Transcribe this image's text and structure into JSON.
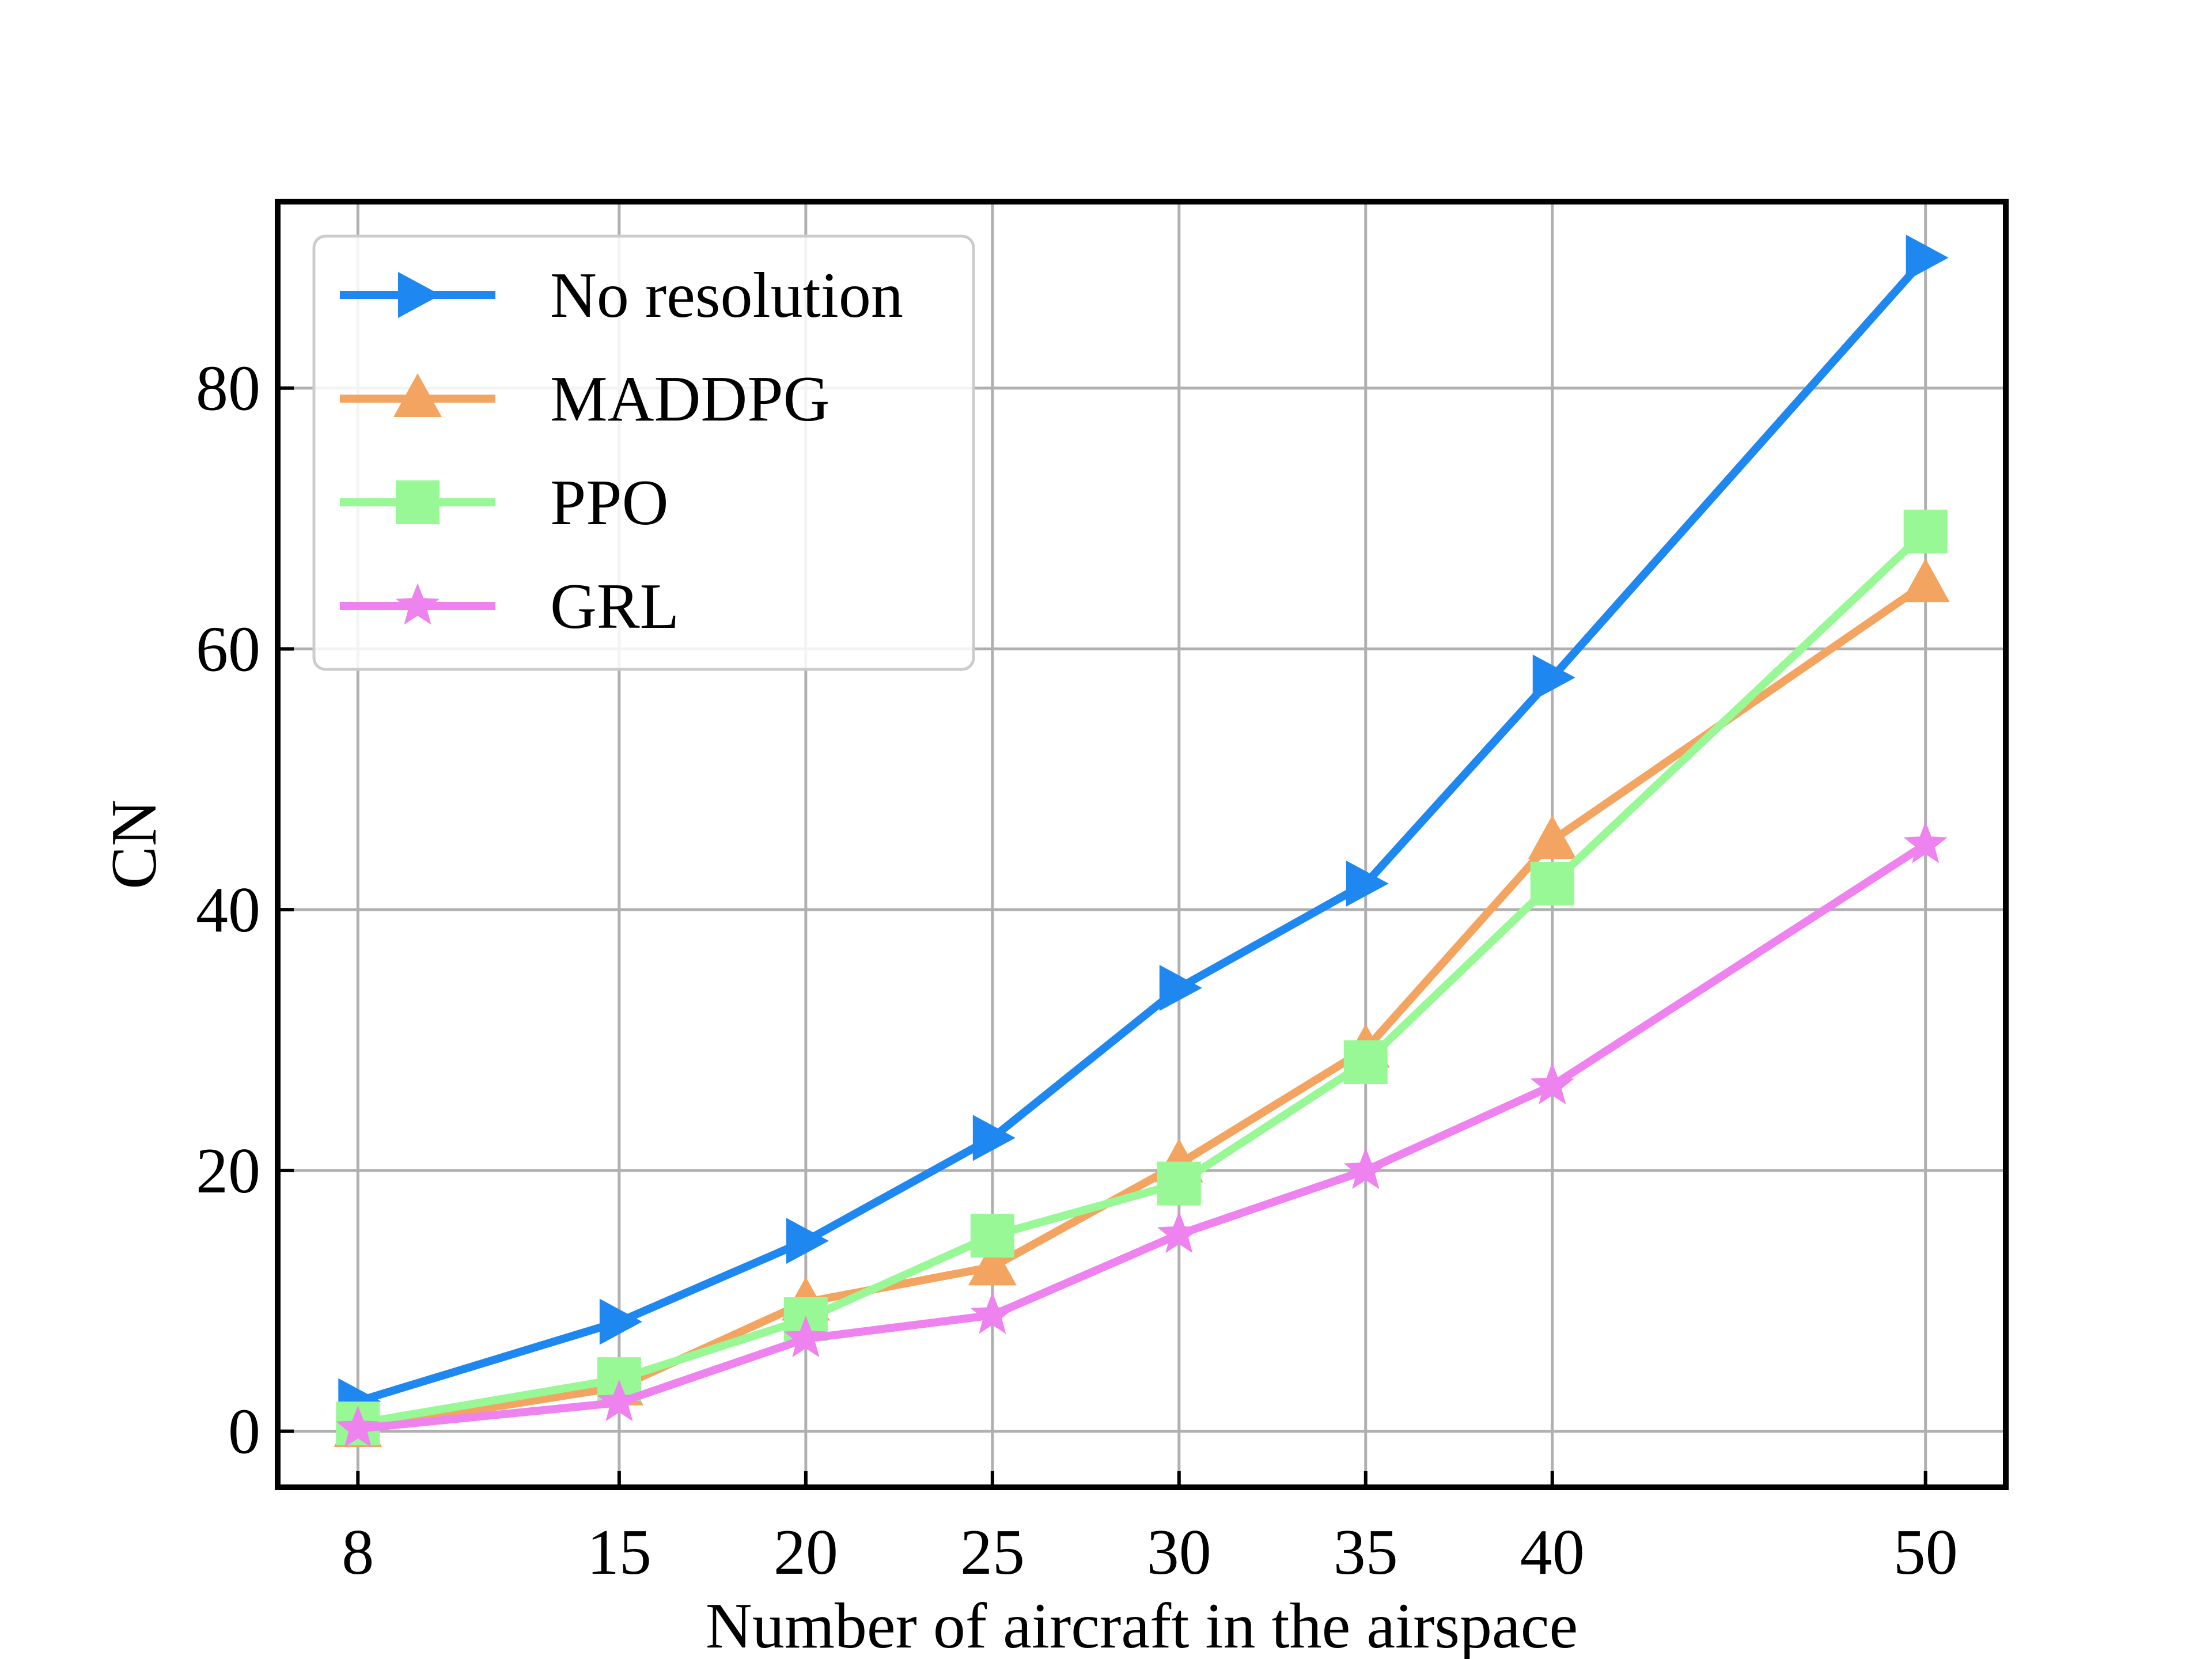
{
  "chart_data": {
    "type": "line",
    "xlabel": "Number of aircraft in the airspace",
    "ylabel": "CN",
    "x": [
      8,
      15,
      20,
      25,
      30,
      35,
      40,
      50
    ],
    "xticks": [
      "8",
      "15",
      "20",
      "25",
      "30",
      "35",
      "40",
      "50"
    ],
    "yticks": [
      "0",
      "20",
      "40",
      "60",
      "80"
    ],
    "xlim": [
      5.85,
      52.15
    ],
    "ylim": [
      -4.3,
      94.3
    ],
    "grid": true,
    "legend_position": "top-left",
    "series": [
      {
        "name": "No resolution",
        "color": "#1e88f0",
        "marker": "triangle-right",
        "values": [
          2.3,
          8.4,
          14.6,
          22.5,
          34.0,
          42.0,
          57.8,
          90.0
        ]
      },
      {
        "name": "MADDPG",
        "color": "#f4a461",
        "marker": "triangle-up",
        "values": [
          0.2,
          3.4,
          9.9,
          12.6,
          20.5,
          29.3,
          45.3,
          65.0
        ]
      },
      {
        "name": "PPO",
        "color": "#98f896",
        "marker": "square",
        "values": [
          0.6,
          4.0,
          8.6,
          15.0,
          19.0,
          28.3,
          42.0,
          69.0
        ]
      },
      {
        "name": "GRL",
        "color": "#ee82ee",
        "marker": "star",
        "values": [
          0.2,
          2.2,
          7.1,
          8.9,
          15.1,
          20.0,
          26.5,
          45.0
        ]
      }
    ]
  }
}
